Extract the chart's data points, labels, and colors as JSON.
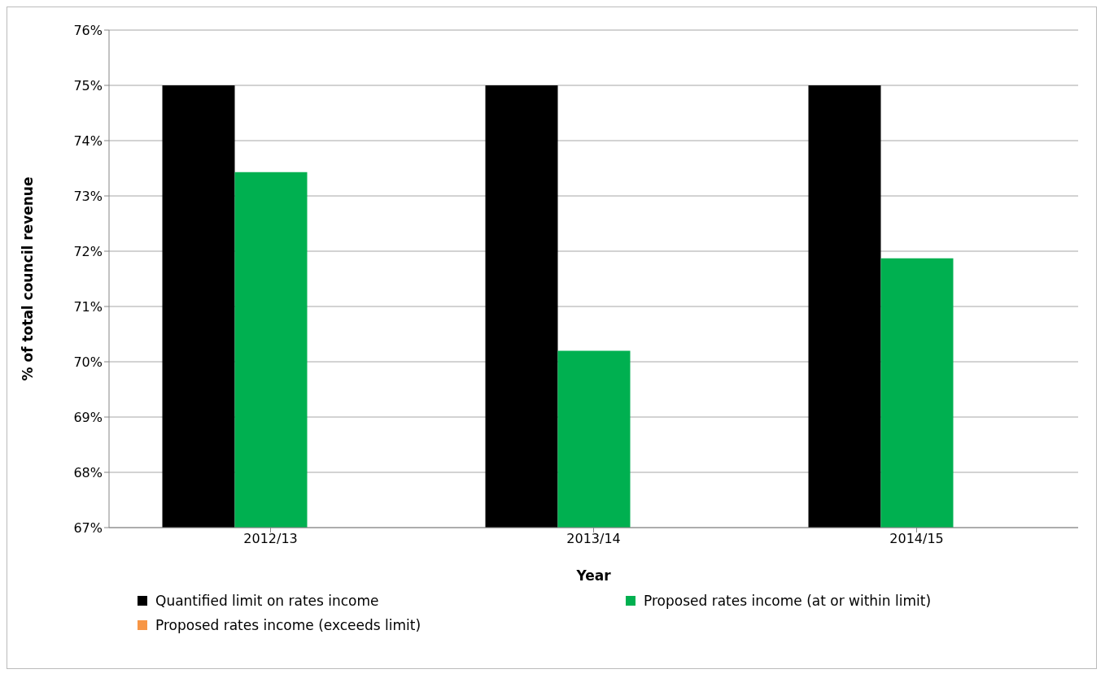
{
  "chart_data": {
    "type": "bar",
    "xlabel": "Year",
    "ylabel": "% of total council revenue",
    "categories": [
      "2012/13",
      "2013/14",
      "2014/15"
    ],
    "series": [
      {
        "name": "Quantified limit on rates income",
        "color": "#000000",
        "values": [
          75,
          75,
          75
        ]
      },
      {
        "name": "Proposed rates income (at or within limit)",
        "color": "#00b050",
        "values": [
          73.43,
          70.2,
          71.87
        ]
      },
      {
        "name": "Proposed rates income (exceeds limit)",
        "color": "#f79646",
        "values": [
          null,
          null,
          null
        ]
      }
    ],
    "ylim": [
      67,
      76
    ],
    "yticks": [
      {
        "value": 67,
        "label": "67%"
      },
      {
        "value": 68,
        "label": "68%"
      },
      {
        "value": 69,
        "label": "69%"
      },
      {
        "value": 70,
        "label": "70%"
      },
      {
        "value": 71,
        "label": "71%"
      },
      {
        "value": 72,
        "label": "72%"
      },
      {
        "value": 73,
        "label": "73%"
      },
      {
        "value": 74,
        "label": "74%"
      },
      {
        "value": 75,
        "label": "75%"
      },
      {
        "value": 76,
        "label": "76%"
      }
    ],
    "grid": "y",
    "legend": "bottom"
  }
}
